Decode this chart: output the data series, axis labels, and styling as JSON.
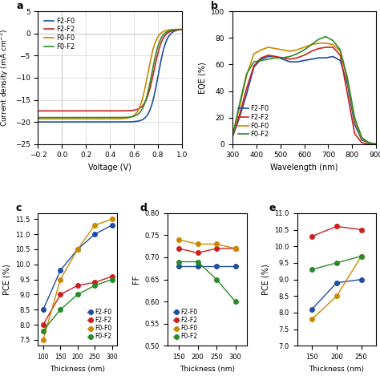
{
  "colors": {
    "F2-F0": "#1f4da0",
    "F2-F2": "#cc2020",
    "F0-F0": "#cc8800",
    "F0-F2": "#2a8a2a"
  },
  "jv_params": {
    "F2-F0": {
      "Jsc": -20.0,
      "Voc": 0.835
    },
    "F2-F2": {
      "Jsc": -17.5,
      "Voc": 0.8
    },
    "F0-F0": {
      "Jsc": -19.3,
      "Voc": 0.745
    },
    "F0-F2": {
      "Jsc": -19.0,
      "Voc": 0.78
    }
  },
  "eqe_wl": [
    300,
    330,
    360,
    390,
    420,
    450,
    480,
    510,
    540,
    570,
    600,
    630,
    660,
    690,
    720,
    750,
    780,
    810,
    840,
    870,
    900
  ],
  "eqe": {
    "F2-F0": [
      5,
      20,
      38,
      58,
      64,
      66,
      66,
      64,
      62,
      62,
      63,
      64,
      65,
      65,
      66,
      63,
      45,
      15,
      3,
      1,
      0
    ],
    "F2-F2": [
      5,
      22,
      42,
      59,
      65,
      67,
      66,
      65,
      64,
      65,
      67,
      70,
      72,
      73,
      73,
      67,
      38,
      8,
      1,
      0,
      0
    ],
    "F0-F0": [
      5,
      28,
      52,
      68,
      71,
      73,
      72,
      71,
      70,
      71,
      73,
      75,
      76,
      76,
      75,
      70,
      48,
      18,
      4,
      1,
      0
    ],
    "F0-F2": [
      5,
      30,
      53,
      62,
      63,
      64,
      65,
      65,
      66,
      68,
      71,
      75,
      79,
      81,
      78,
      71,
      50,
      20,
      5,
      1,
      0
    ]
  },
  "c_data": {
    "F2-F0": {
      "x": [
        100,
        150,
        200,
        250,
        300
      ],
      "y": [
        8.5,
        9.8,
        10.5,
        11.0,
        11.3
      ]
    },
    "F2-F2": {
      "x": [
        100,
        150,
        200,
        250,
        300
      ],
      "y": [
        8.0,
        9.0,
        9.3,
        9.4,
        9.6
      ]
    },
    "F0-F0": {
      "x": [
        100,
        150,
        200,
        250,
        300
      ],
      "y": [
        7.5,
        9.5,
        10.5,
        11.3,
        11.5
      ]
    },
    "F0-F2": {
      "x": [
        100,
        150,
        200,
        250,
        300
      ],
      "y": [
        7.8,
        8.5,
        9.0,
        9.3,
        9.5
      ]
    }
  },
  "d_data": {
    "F2-F0": {
      "x": [
        150,
        200,
        250,
        300
      ],
      "y": [
        0.68,
        0.68,
        0.68,
        0.68
      ]
    },
    "F2-F2": {
      "x": [
        150,
        200,
        250,
        300
      ],
      "y": [
        0.72,
        0.71,
        0.72,
        0.72
      ]
    },
    "F0-F0": {
      "x": [
        150,
        200,
        250,
        300
      ],
      "y": [
        0.74,
        0.73,
        0.73,
        0.72
      ]
    },
    "F0-F2": {
      "x": [
        150,
        200,
        250,
        300
      ],
      "y": [
        0.69,
        0.69,
        0.65,
        0.6
      ]
    }
  },
  "e_data": {
    "F2-F0": {
      "x": [
        150,
        200,
        250
      ],
      "y": [
        8.1,
        8.9,
        9.0
      ]
    },
    "F2-F2": {
      "x": [
        150,
        200,
        250
      ],
      "y": [
        10.3,
        10.6,
        10.5
      ]
    },
    "F0-F0": {
      "x": [
        150,
        200,
        250
      ],
      "y": [
        7.8,
        8.5,
        9.7
      ]
    },
    "F0-F2": {
      "x": [
        150,
        200,
        250
      ],
      "y": [
        9.3,
        9.5,
        9.7
      ]
    }
  },
  "xlabel_thickness": "Thickness (nm)",
  "ylabel_c": "PCE (%)",
  "ylabel_d": "FF",
  "ylabel_e": "PCE (%)"
}
